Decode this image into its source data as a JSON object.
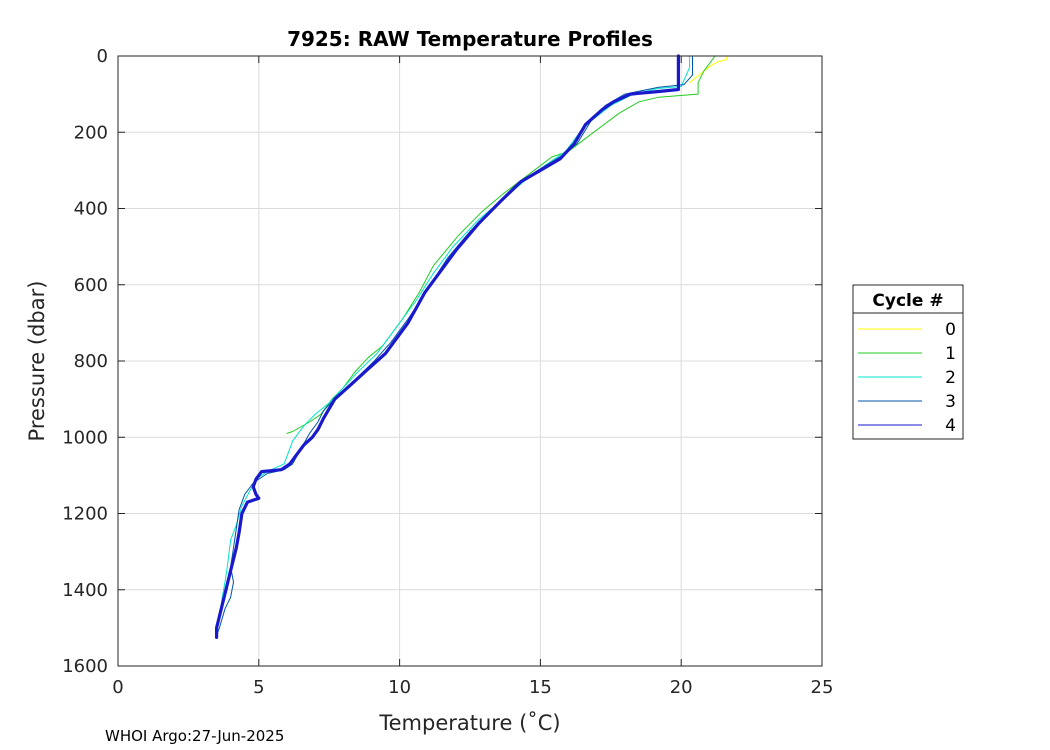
{
  "chart_data": {
    "type": "line",
    "title": "7925: RAW Temperature Profiles",
    "xlabel": "Temperature (˚C)",
    "ylabel": "Pressure (dbar)",
    "xlim": [
      0,
      25
    ],
    "ylim": [
      0,
      1600
    ],
    "y_reversed": true,
    "grid": true,
    "x_ticks": [
      0,
      5,
      10,
      15,
      20,
      25
    ],
    "y_ticks": [
      0,
      200,
      400,
      600,
      800,
      1000,
      1200,
      1400,
      1600
    ],
    "legend": {
      "title": "Cycle #",
      "placement": "outside-right"
    },
    "footer": "WHOI Argo:27-Jun-2025",
    "series": [
      {
        "name": "0",
        "color": "#ffff00",
        "width": 1,
        "points": [
          [
            21.6,
            0
          ],
          [
            21.6,
            10
          ],
          [
            21.3,
            15
          ],
          [
            21.0,
            28
          ],
          [
            20.3,
            70
          ]
        ]
      },
      {
        "name": "1",
        "color": "#22cc22",
        "width": 1,
        "points": [
          [
            21.2,
            0
          ],
          [
            21.1,
            10
          ],
          [
            20.8,
            40
          ],
          [
            20.6,
            70
          ],
          [
            20.6,
            100
          ],
          [
            19.2,
            108
          ],
          [
            18.5,
            120
          ],
          [
            17.8,
            150
          ],
          [
            16.8,
            205
          ],
          [
            16.0,
            250
          ],
          [
            15.4,
            265
          ],
          [
            14.6,
            310
          ],
          [
            13.7,
            360
          ],
          [
            12.9,
            410
          ],
          [
            12.1,
            470
          ],
          [
            11.2,
            550
          ],
          [
            10.7,
            620
          ],
          [
            10.1,
            690
          ],
          [
            9.4,
            760
          ],
          [
            8.9,
            790
          ],
          [
            8.4,
            830
          ],
          [
            8.0,
            870
          ],
          [
            7.6,
            900
          ],
          [
            7.2,
            940
          ],
          [
            6.8,
            960
          ],
          [
            6.2,
            985
          ],
          [
            6.0,
            990
          ]
        ]
      },
      {
        "name": "2",
        "color": "#00e5cc",
        "width": 1,
        "points": [
          [
            20.3,
            0
          ],
          [
            20.3,
            30
          ],
          [
            20.0,
            80
          ],
          [
            19.2,
            85
          ],
          [
            18.3,
            100
          ],
          [
            17.5,
            130
          ],
          [
            16.8,
            170
          ],
          [
            16.4,
            200
          ],
          [
            15.9,
            250
          ],
          [
            15.2,
            285
          ],
          [
            14.4,
            330
          ],
          [
            13.6,
            380
          ],
          [
            12.8,
            430
          ],
          [
            11.9,
            500
          ],
          [
            11.2,
            570
          ],
          [
            10.6,
            640
          ],
          [
            9.8,
            720
          ],
          [
            9.2,
            780
          ],
          [
            8.5,
            830
          ],
          [
            8.0,
            870
          ],
          [
            7.5,
            910
          ],
          [
            7.0,
            940
          ],
          [
            6.6,
            970
          ],
          [
            6.2,
            1010
          ],
          [
            6.0,
            1050
          ],
          [
            5.9,
            1070
          ],
          [
            5.3,
            1090
          ],
          [
            4.9,
            1110
          ],
          [
            4.4,
            1180
          ],
          [
            4.2,
            1230
          ],
          [
            4.0,
            1270
          ],
          [
            3.9,
            1330
          ],
          [
            3.8,
            1380
          ],
          [
            3.7,
            1420
          ],
          [
            3.6,
            1470
          ],
          [
            3.5,
            1520
          ]
        ]
      },
      {
        "name": "3",
        "color": "#0055aa",
        "width": 1,
        "points": [
          [
            20.4,
            0
          ],
          [
            20.4,
            50
          ],
          [
            20.1,
            75
          ],
          [
            19.2,
            82
          ],
          [
            18.0,
            100
          ],
          [
            17.3,
            130
          ],
          [
            16.8,
            170
          ],
          [
            16.3,
            230
          ],
          [
            15.8,
            260
          ],
          [
            14.9,
            300
          ],
          [
            14.1,
            340
          ],
          [
            13.3,
            400
          ],
          [
            12.5,
            460
          ],
          [
            11.7,
            530
          ],
          [
            11.0,
            610
          ],
          [
            10.3,
            690
          ],
          [
            9.7,
            750
          ],
          [
            9.1,
            800
          ],
          [
            8.4,
            850
          ],
          [
            7.8,
            890
          ],
          [
            7.3,
            930
          ],
          [
            7.1,
            960
          ],
          [
            6.8,
            990
          ],
          [
            6.5,
            1030
          ],
          [
            6.2,
            1070
          ],
          [
            5.9,
            1085
          ],
          [
            5.3,
            1095
          ],
          [
            4.8,
            1120
          ],
          [
            4.5,
            1150
          ],
          [
            4.3,
            1190
          ],
          [
            4.2,
            1240
          ],
          [
            4.1,
            1290
          ],
          [
            4.0,
            1340
          ],
          [
            4.1,
            1380
          ],
          [
            4.0,
            1420
          ],
          [
            3.8,
            1450
          ],
          [
            3.6,
            1500
          ],
          [
            3.5,
            1520
          ]
        ]
      },
      {
        "name": "4",
        "color": "#1a1acc",
        "width": 3.2,
        "points": [
          [
            19.9,
            0
          ],
          [
            19.9,
            88
          ],
          [
            19.2,
            93
          ],
          [
            18.2,
            100
          ],
          [
            17.6,
            120
          ],
          [
            17.2,
            140
          ],
          [
            16.6,
            180
          ],
          [
            16.2,
            230
          ],
          [
            15.7,
            270
          ],
          [
            15.0,
            300
          ],
          [
            14.3,
            330
          ],
          [
            13.6,
            380
          ],
          [
            12.8,
            440
          ],
          [
            12.0,
            510
          ],
          [
            11.4,
            570
          ],
          [
            10.9,
            620
          ],
          [
            10.6,
            660
          ],
          [
            10.3,
            700
          ],
          [
            9.9,
            740
          ],
          [
            9.5,
            780
          ],
          [
            8.9,
            820
          ],
          [
            8.3,
            860
          ],
          [
            7.7,
            900
          ],
          [
            7.3,
            950
          ],
          [
            7.1,
            980
          ],
          [
            6.9,
            1000
          ],
          [
            6.6,
            1020
          ],
          [
            6.3,
            1050
          ],
          [
            6.1,
            1070
          ],
          [
            5.8,
            1085
          ],
          [
            5.1,
            1090
          ],
          [
            4.9,
            1110
          ],
          [
            4.8,
            1130
          ],
          [
            4.9,
            1150
          ],
          [
            5.0,
            1160
          ],
          [
            4.6,
            1170
          ],
          [
            4.4,
            1200
          ],
          [
            4.3,
            1250
          ],
          [
            4.2,
            1290
          ],
          [
            4.1,
            1320
          ],
          [
            4.0,
            1350
          ],
          [
            3.9,
            1380
          ],
          [
            3.8,
            1410
          ],
          [
            3.7,
            1440
          ],
          [
            3.6,
            1470
          ],
          [
            3.5,
            1500
          ],
          [
            3.5,
            1525
          ]
        ]
      }
    ]
  }
}
